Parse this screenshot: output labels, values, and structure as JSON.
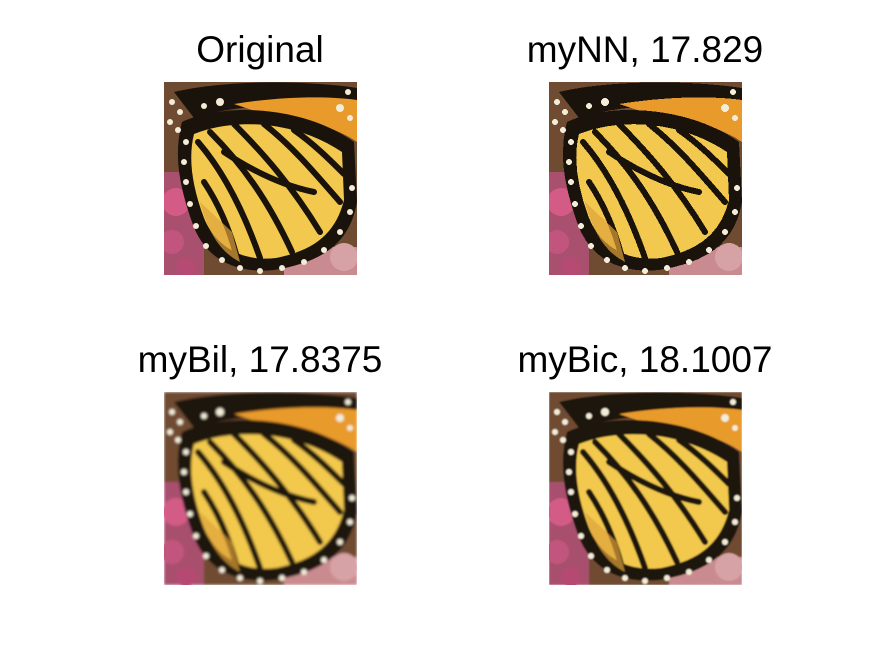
{
  "figure": {
    "panels": [
      {
        "title": "Original"
      },
      {
        "title": "myNN, 17.829"
      },
      {
        "title": "myBil, 17.8375"
      },
      {
        "title": "myBic, 18.1007"
      }
    ]
  },
  "colors": {
    "wing_yellow": "#f2c84e",
    "wing_orange": "#e89a2a",
    "vein_black": "#1a130c",
    "spot_white": "#f3ecd8",
    "flower_pink": "#c2557e",
    "background_brown": "#6f4b32"
  }
}
